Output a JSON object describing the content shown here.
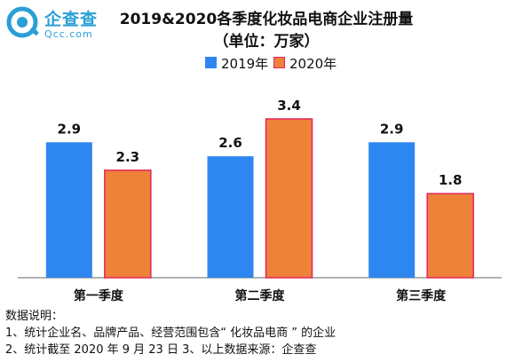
{
  "logo": {
    "name": "企查查",
    "sub": "Qcc.com",
    "icon": "qcc-logo-icon",
    "color": "#2a9fd6"
  },
  "colors": {
    "s2019": "#2e86f0",
    "s2020": "#ef8239",
    "s2020_border": "#e0245e",
    "axis": "#666666"
  },
  "chart_data": {
    "type": "bar",
    "title": "2019&2020各季度化妆品电商企业注册量",
    "subtitle": "（单位：万家）",
    "categories": [
      "第一季度",
      "第二季度",
      "第三季度"
    ],
    "series": [
      {
        "name": "2019年",
        "values": [
          2.9,
          2.6,
          2.9
        ]
      },
      {
        "name": "2020年",
        "values": [
          2.3,
          3.4,
          1.8
        ]
      }
    ],
    "data_labels": [
      [
        "2.9",
        "2.6",
        "2.9"
      ],
      [
        "2.3",
        "3.4",
        "1.8"
      ]
    ],
    "ylim": [
      0,
      3.4
    ],
    "grid": false,
    "legend": "top-center"
  },
  "notes": {
    "heading": "数据说明：",
    "line1": "1、统计企业名、品牌产品、经营范围包含“ 化妆品电商 ” 的企业",
    "line2": "2、统计截至 2020 年 9 月 23 日 3、以上数据来源：企查查"
  }
}
